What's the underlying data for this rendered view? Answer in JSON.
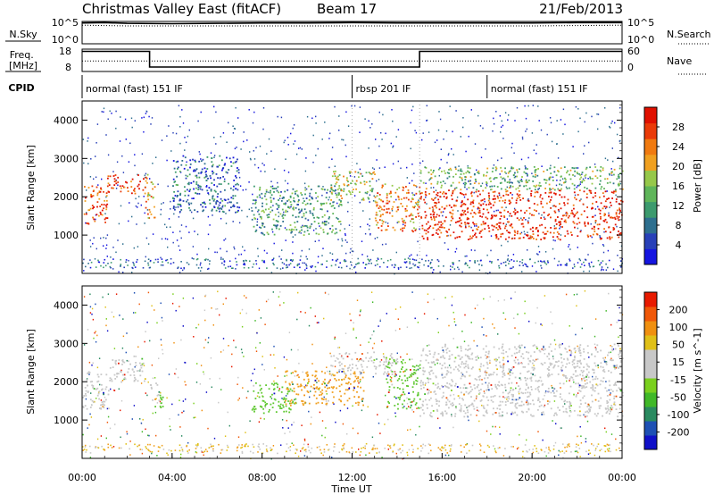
{
  "header": {
    "title": "Christmas Valley East (fitACF)",
    "beam": "Beam 17",
    "date": "21/Feb/2013"
  },
  "chart_data": [
    {
      "type": "line",
      "title": "N.Sky",
      "right_label": "N.Search",
      "y_left_ticks": [
        "10^5",
        "10^0"
      ],
      "y_right_ticks": [
        "10^5",
        "10^0"
      ],
      "series": [
        {
          "name": "N.Sky",
          "style": "solid",
          "x": [
            0,
            1,
            2,
            4,
            6,
            8,
            10,
            12,
            14,
            16,
            18,
            20,
            22,
            24
          ],
          "y": [
            5.6,
            5.7,
            5.5,
            5.4,
            5.5,
            5.6,
            5.6,
            5.7,
            5.6,
            5.6,
            5.6,
            5.6,
            5.7,
            5.7
          ]
        },
        {
          "name": "N.Search",
          "style": "dotted",
          "x": [
            0,
            2,
            4,
            6,
            8,
            10,
            12,
            14,
            16,
            18,
            20,
            22,
            24
          ],
          "y": [
            5.0,
            4.8,
            4.8,
            4.8,
            4.8,
            4.8,
            4.8,
            4.8,
            4.8,
            4.8,
            4.8,
            4.9,
            5.0
          ]
        }
      ]
    },
    {
      "type": "line",
      "title": "Freq. [MHz]",
      "right_label": "Nave",
      "y_left_ticks": [
        "18",
        "8"
      ],
      "y_right_ticks": [
        "60",
        "0"
      ],
      "series": [
        {
          "name": "Freq",
          "style": "solid",
          "x": [
            0,
            3,
            3,
            15,
            15,
            24
          ],
          "y": [
            17,
            17,
            10,
            10,
            17,
            17
          ]
        },
        {
          "name": "Nave",
          "style": "dotted",
          "x": [
            0,
            24
          ],
          "y": [
            28,
            28
          ]
        }
      ]
    },
    {
      "type": "table",
      "title": "CPID",
      "segments": [
        {
          "label": "normal (fast) 151 IF",
          "start": 0,
          "end": 12
        },
        {
          "label": "rbsp 201 IF",
          "start": 12,
          "end": 18
        },
        {
          "label": "normal (fast) 151 IF",
          "start": 18,
          "end": 24
        }
      ]
    },
    {
      "type": "heatmap",
      "ylabel": "Slant Range [km]",
      "ylim": [
        0,
        4500
      ],
      "y_ticks": [
        "1000",
        "2000",
        "3000",
        "4000"
      ],
      "colorbar_label": "Power [dB]",
      "colorbar_ticks": [
        "4",
        "8",
        "12",
        "16",
        "20",
        "24",
        "28"
      ],
      "colorbar_colors": [
        "#1515e0",
        "#2840b8",
        "#2e6f8f",
        "#3c9a6e",
        "#5fb55a",
        "#96c84a",
        "#f0a020",
        "#f07a10",
        "#ea3a08",
        "#e01000"
      ],
      "regions": [
        {
          "t": [
            0.0,
            1.1
          ],
          "r": [
            1300,
            2300
          ],
          "level": 0.85
        },
        {
          "t": [
            1.1,
            2.7
          ],
          "r": [
            2100,
            2600
          ],
          "level": 0.9
        },
        {
          "t": [
            2.7,
            3.2
          ],
          "r": [
            1400,
            2600
          ],
          "level": 0.7
        },
        {
          "t": [
            4.0,
            7.0
          ],
          "r": [
            1600,
            3100
          ],
          "level": 0.2
        },
        {
          "t": [
            7.5,
            11.5
          ],
          "r": [
            1000,
            2300
          ],
          "level": 0.35
        },
        {
          "t": [
            11.0,
            13.0
          ],
          "r": [
            1900,
            2700
          ],
          "level": 0.55
        },
        {
          "t": [
            13.0,
            15.0
          ],
          "r": [
            1100,
            2400
          ],
          "level": 0.75
        },
        {
          "t": [
            15.0,
            24.0
          ],
          "r": [
            900,
            2200
          ],
          "level": 0.95
        },
        {
          "t": [
            15.0,
            24.0
          ],
          "r": [
            2200,
            2800
          ],
          "level": 0.45
        }
      ]
    },
    {
      "type": "heatmap",
      "xlabel": "Time UT",
      "ylabel": "Slant Range [km]",
      "ylim": [
        0,
        4500
      ],
      "y_ticks": [
        "1000",
        "2000",
        "3000",
        "4000"
      ],
      "x_ticks": [
        "00:00",
        "04:00",
        "08:00",
        "12:00",
        "16:00",
        "20:00",
        "00:00"
      ],
      "colorbar_label": "Velocity [m s^-1]",
      "colorbar_ticks": [
        "200",
        "100",
        "50",
        "15",
        "-15",
        "-50",
        "-100",
        "-200"
      ],
      "colorbar_colors": [
        "#1010c8",
        "#1e50b4",
        "#2a8a60",
        "#40b828",
        "#7ad01e",
        "#c8c8c8",
        "#c8c8c8",
        "#e0c018",
        "#f09010",
        "#f05808",
        "#e81a00"
      ],
      "regions": [
        {
          "t": [
            0.0,
            1.2
          ],
          "r": [
            1300,
            2300
          ],
          "color": "#c8c8c8"
        },
        {
          "t": [
            1.2,
            2.8
          ],
          "r": [
            2000,
            2700
          ],
          "color": "#c8c8c8"
        },
        {
          "t": [
            3.0,
            3.4
          ],
          "r": [
            1500,
            2000
          ],
          "color": "#c8c8c8"
        },
        {
          "t": [
            3.2,
            3.6
          ],
          "r": [
            1300,
            1800
          ],
          "color": "#5fc830"
        },
        {
          "t": [
            7.5,
            9.5
          ],
          "r": [
            1200,
            2000
          ],
          "color": "#5fc830"
        },
        {
          "t": [
            9.0,
            12.5
          ],
          "r": [
            1400,
            2300
          ],
          "color": "#f0a020"
        },
        {
          "t": [
            11.0,
            14.0
          ],
          "r": [
            2200,
            2800
          ],
          "color": "#c8c8c8"
        },
        {
          "t": [
            13.5,
            15.0
          ],
          "r": [
            1300,
            2600
          ],
          "color": "#5fc830"
        },
        {
          "t": [
            15.0,
            24.0
          ],
          "r": [
            1100,
            2300
          ],
          "color": "#c8c8c8"
        },
        {
          "t": [
            15.0,
            24.0
          ],
          "r": [
            2300,
            3000
          ],
          "color": "#c8c8c8"
        }
      ]
    }
  ]
}
